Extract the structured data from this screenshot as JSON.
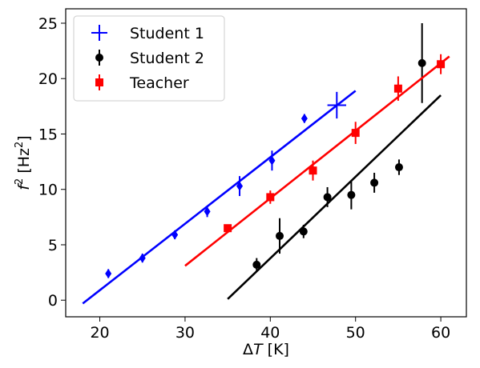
{
  "chart_data": {
    "type": "scatter",
    "xlabel": {
      "prefix": "ΔT",
      "italic": "",
      "suffix": " [K]"
    },
    "ylabel": {
      "italic": "f",
      "sup": "2",
      "mid": " [Hz",
      "sup2": "2",
      "end": "]"
    },
    "xlim": [
      16,
      63
    ],
    "ylim": [
      -1.5,
      26.3
    ],
    "xticks": [
      20,
      30,
      40,
      50,
      60
    ],
    "yticks": [
      0,
      5,
      10,
      15,
      20,
      25
    ],
    "grid": false,
    "legend_position": "top-left",
    "series": [
      {
        "name": "Student 1",
        "color": "#0000ff",
        "marker": "diamond",
        "points": [
          {
            "x": 21.0,
            "y": 2.4,
            "yerr": 0.4
          },
          {
            "x": 25.0,
            "y": 3.8,
            "yerr": 0.4
          },
          {
            "x": 28.8,
            "y": 5.9,
            "yerr": 0.4
          },
          {
            "x": 32.6,
            "y": 8.0,
            "yerr": 0.5
          },
          {
            "x": 36.4,
            "y": 10.3,
            "yerr": 0.9
          },
          {
            "x": 40.2,
            "y": 12.6,
            "yerr": 0.9
          },
          {
            "x": 44.0,
            "y": 16.4,
            "yerr": 0.4
          },
          {
            "x": 47.8,
            "y": 17.6,
            "yerr": 1.2,
            "xerr": 1.1
          }
        ],
        "fit": {
          "x": [
            18.0,
            50.0
          ],
          "y": [
            -0.3,
            18.9
          ]
        }
      },
      {
        "name": "Student 2",
        "color": "#000000",
        "marker": "circle",
        "points": [
          {
            "x": 38.4,
            "y": 3.2,
            "yerr": 0.6
          },
          {
            "x": 41.1,
            "y": 5.8,
            "yerr": 1.6
          },
          {
            "x": 43.9,
            "y": 6.2,
            "yerr": 0.6
          },
          {
            "x": 46.7,
            "y": 9.3,
            "yerr": 0.9
          },
          {
            "x": 49.5,
            "y": 9.5,
            "yerr": 1.3
          },
          {
            "x": 52.2,
            "y": 10.6,
            "yerr": 0.9
          },
          {
            "x": 55.1,
            "y": 12.0,
            "yerr": 0.7
          },
          {
            "x": 57.8,
            "y": 21.4,
            "yerr": 3.6
          }
        ],
        "fit": {
          "x": [
            35.0,
            60.0
          ],
          "y": [
            0.1,
            18.5
          ]
        }
      },
      {
        "name": "Teacher",
        "color": "#ff0000",
        "marker": "square",
        "points": [
          {
            "x": 35.0,
            "y": 6.5,
            "yerr": 0.3
          },
          {
            "x": 40.0,
            "y": 9.3,
            "yerr": 0.6
          },
          {
            "x": 45.0,
            "y": 11.7,
            "yerr": 0.9
          },
          {
            "x": 50.0,
            "y": 15.1,
            "yerr": 1.0
          },
          {
            "x": 55.0,
            "y": 19.1,
            "yerr": 1.1
          },
          {
            "x": 60.0,
            "y": 21.3,
            "yerr": 0.9
          }
        ],
        "fit": {
          "x": [
            30.0,
            61.0
          ],
          "y": [
            3.1,
            22.0
          ]
        }
      }
    ]
  }
}
